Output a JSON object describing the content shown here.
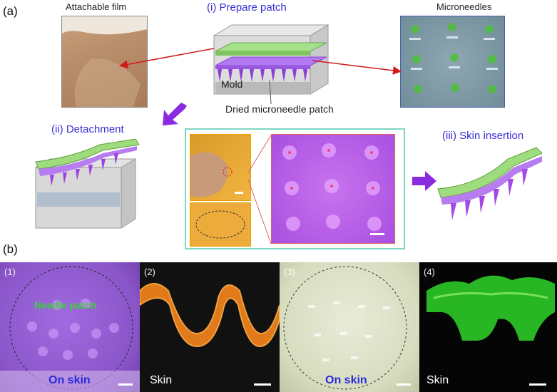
{
  "panel_a": {
    "label": "(a)",
    "attachable_film_label": "Attachable film",
    "prepare_patch_label": "(i) Prepare patch",
    "microneedles_label": "Microneedles",
    "mold_label": "Mold",
    "dried_patch_label": "Dried microneedle patch",
    "detachment_label": "(ii) Detachment",
    "skin_insertion_label": "(iii) Skin insertion"
  },
  "panel_b": {
    "label": "(b)",
    "cells": [
      {
        "num": "(1)",
        "caption": "On skin",
        "overlay": "Needle patch"
      },
      {
        "num": "(2)",
        "caption": "Skin"
      },
      {
        "num": "(3)",
        "caption": "On skin"
      },
      {
        "num": "(4)",
        "caption": "Skin"
      }
    ]
  },
  "colors": {
    "accent_blue": "#3a2fd6",
    "magenta": "#c040e8",
    "green": "#2fd62a",
    "orange": "#e07a1a",
    "arrow_purple": "#8a2be2",
    "arrow_red": "#d21a1a",
    "frame_teal": "#7fd6c5"
  }
}
